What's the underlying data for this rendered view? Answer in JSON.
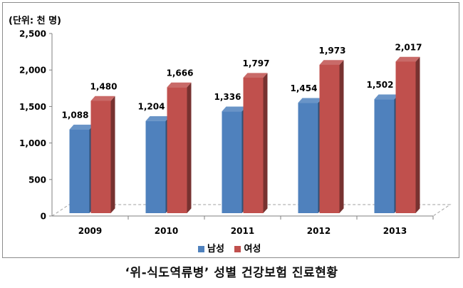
{
  "chart_data": {
    "type": "bar",
    "unit_label": "(단위: 천 명)",
    "categories": [
      "2009",
      "2010",
      "2011",
      "2012",
      "2013"
    ],
    "series": [
      {
        "name": "남성",
        "color": "#4f81bd",
        "values": [
          1088,
          1204,
          1336,
          1454,
          1502
        ],
        "labels": [
          "1,088",
          "1,204",
          "1,336",
          "1,454",
          "1,502"
        ]
      },
      {
        "name": "여성",
        "color": "#c0504d",
        "values": [
          1480,
          1666,
          1797,
          1973,
          2017
        ],
        "labels": [
          "1,480",
          "1,666",
          "1,797",
          "1,973",
          "2,017"
        ]
      }
    ],
    "yticks": [
      "0",
      "500",
      "1,000",
      "1,500",
      "2,000",
      "2,500"
    ],
    "ylim": [
      0,
      2500
    ],
    "grid": false,
    "legend_position": "bottom"
  },
  "caption": "‘위-식도역류병’ 성별 건강보험 진료현황"
}
